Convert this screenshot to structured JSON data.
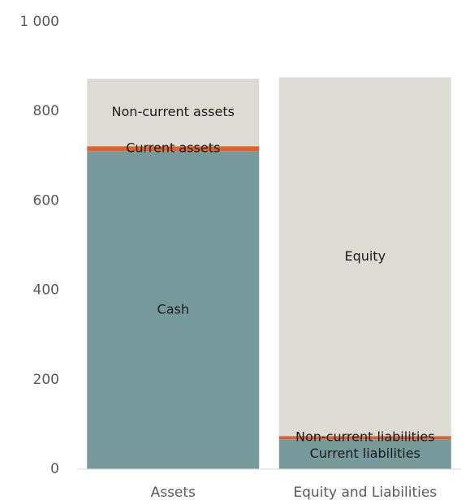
{
  "chart_data": {
    "type": "stacked_bar",
    "categories": [
      "Assets",
      "Equity and Liabilities"
    ],
    "series": [
      {
        "name": "Cash",
        "color": "#76999b",
        "values": [
          711,
          null
        ]
      },
      {
        "name": "Current assets",
        "color": "#e0622c",
        "values": [
          11,
          null
        ]
      },
      {
        "name": "Non-current assets",
        "color": "#dddcd4",
        "values": [
          151,
          null
        ]
      },
      {
        "name": "Current liabilities",
        "color": "#76999b",
        "values": [
          null,
          67
        ]
      },
      {
        "name": "Non-current liabilities",
        "color": "#e0622c",
        "values": [
          null,
          7
        ]
      },
      {
        "name": "Equity",
        "color": "#dddcd4",
        "values": [
          null,
          802
        ]
      }
    ],
    "ylim": [
      0,
      1000
    ],
    "yticks": [
      0,
      200,
      400,
      600,
      800,
      {
        "value": 1000,
        "label": "1 000"
      }
    ]
  }
}
